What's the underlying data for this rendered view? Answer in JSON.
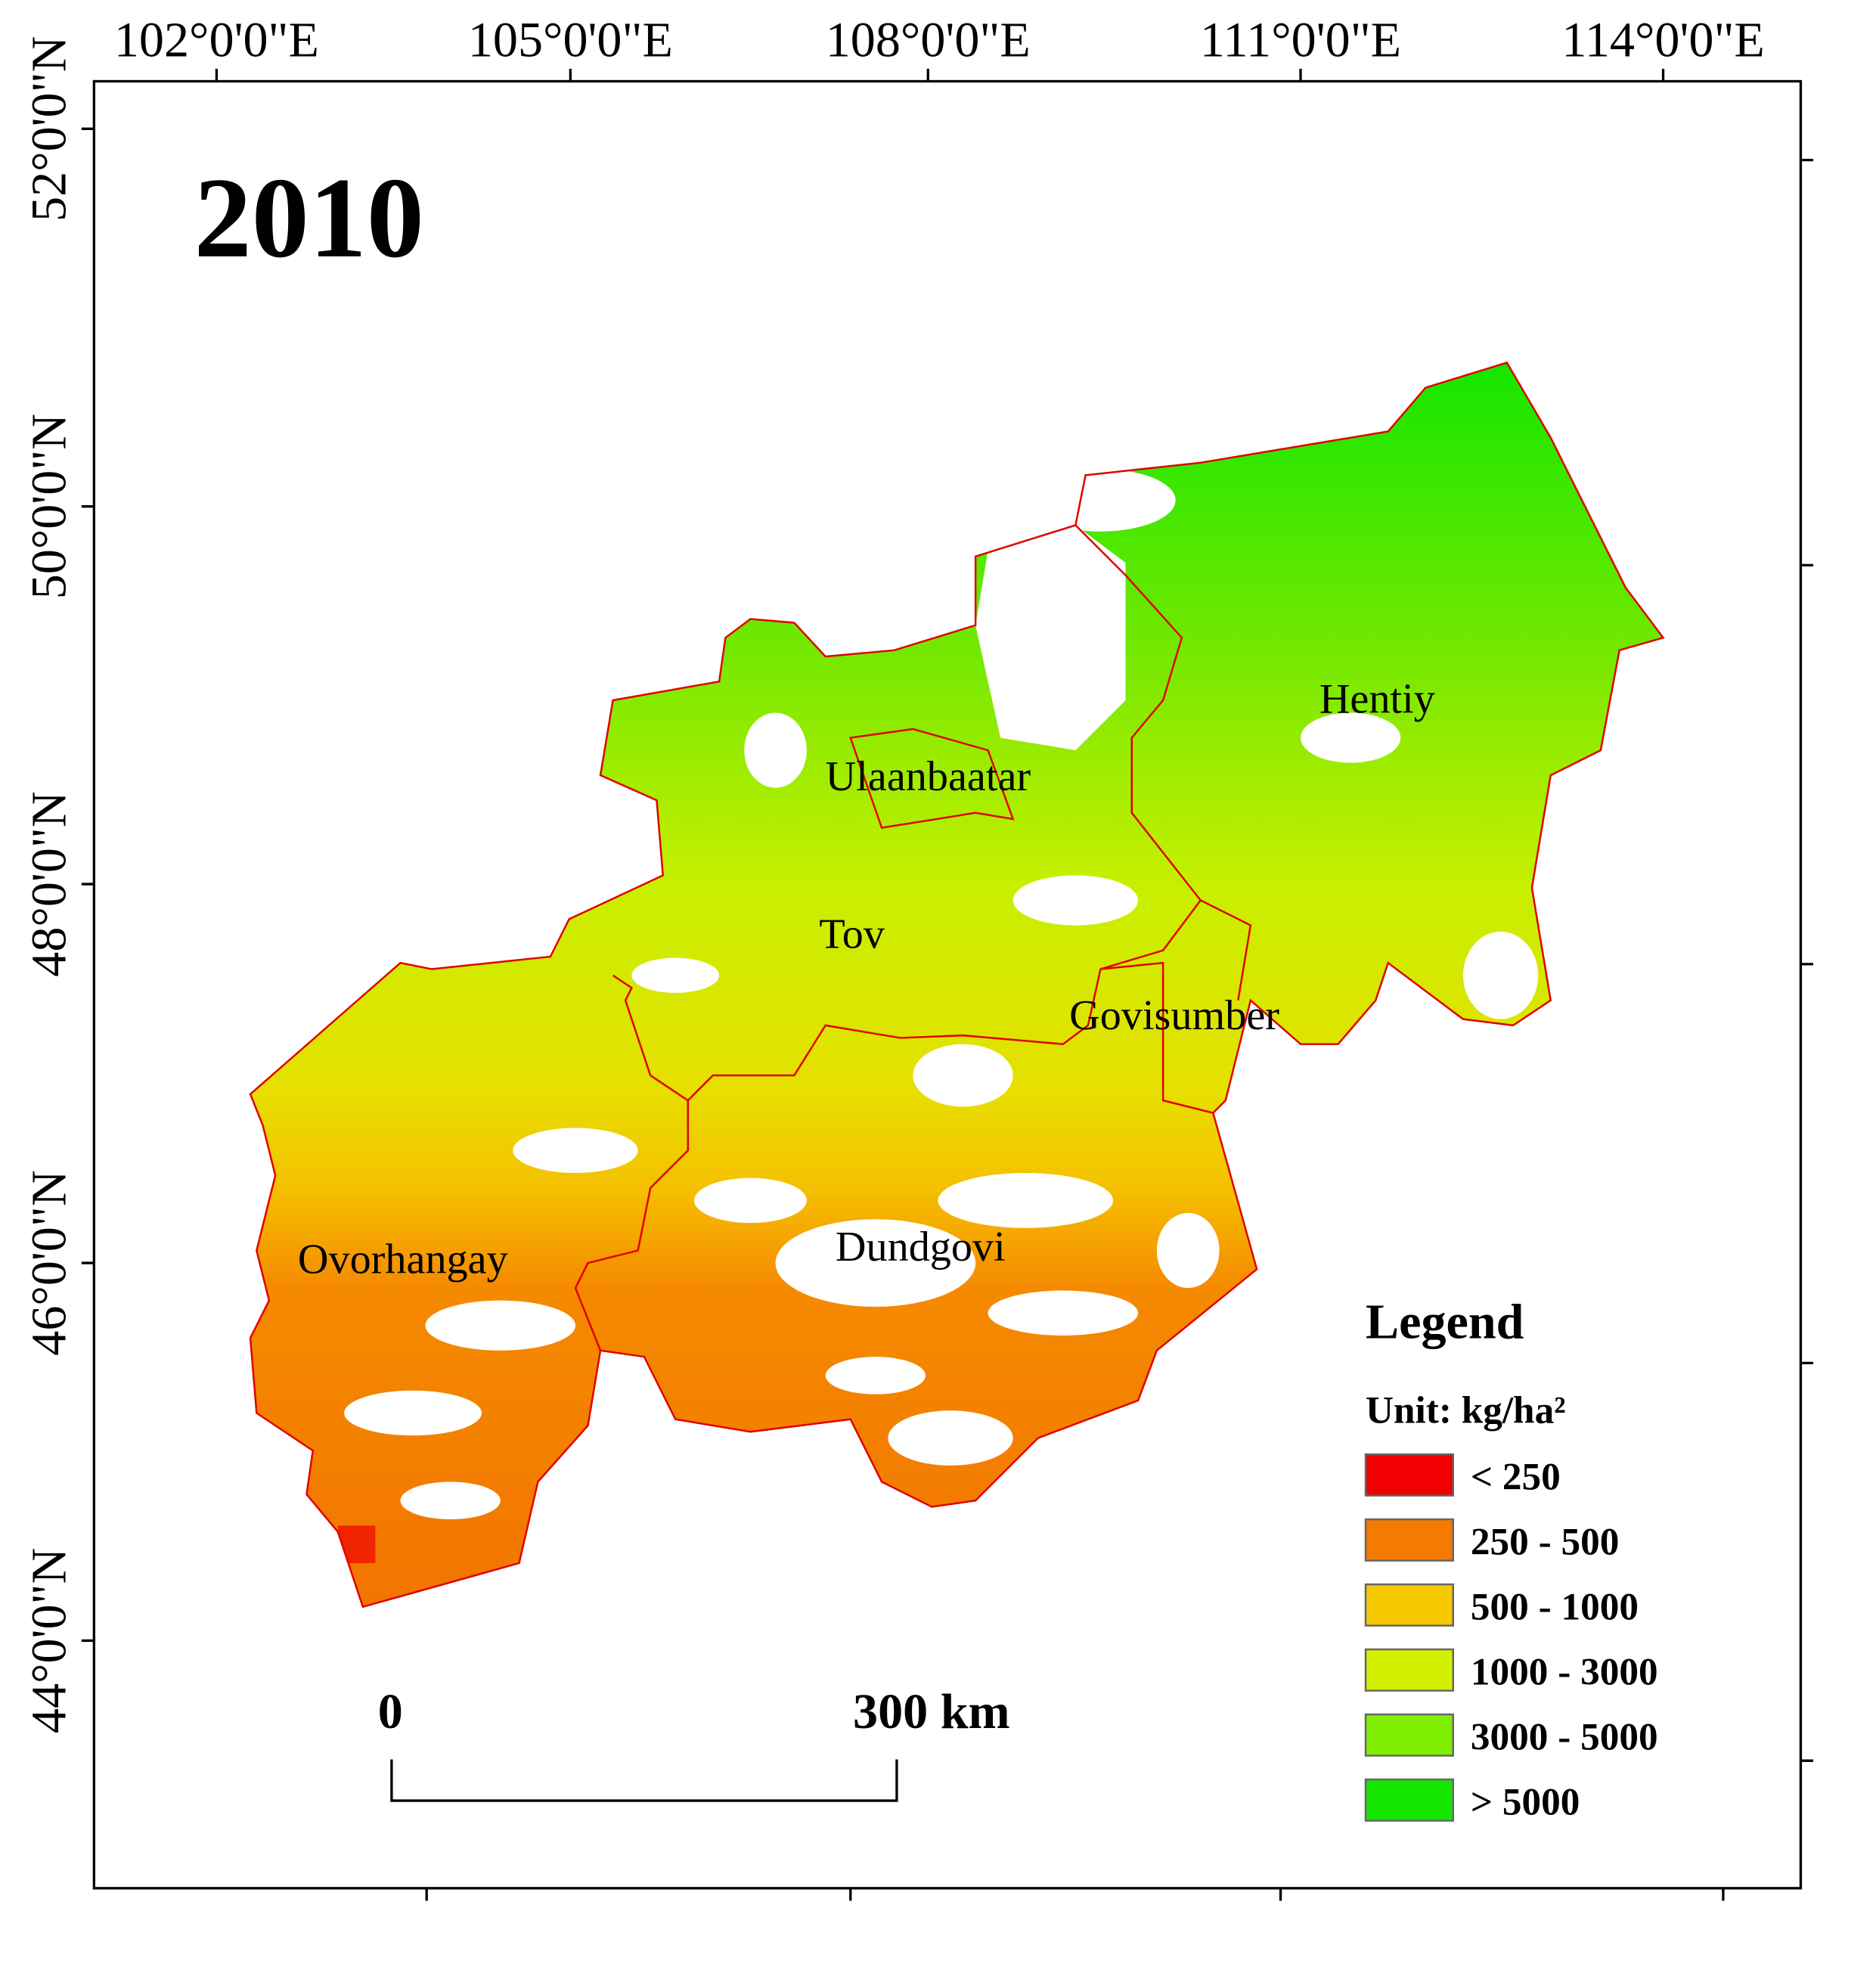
{
  "map": {
    "title": "2010",
    "longitude_labels": [
      "102°0'0\"E",
      "105°0'0\"E",
      "108°0'0\"E",
      "111°0'0\"E",
      "114°0'0\"E"
    ],
    "latitude_labels": [
      "52°0'0\"N",
      "50°0'0\"N",
      "48°0'0\"N",
      "46°0'0\"N",
      "44°0'0\"N"
    ],
    "regions": [
      "Hentiy",
      "Ulaanbaatar",
      "Tov",
      "Govisumber",
      "Ovorhangay",
      "Dundgovi"
    ]
  },
  "legend": {
    "title": "Legend",
    "unit": "Unit: kg/ha²",
    "items": [
      {
        "label": "< 250",
        "color": "#f00000"
      },
      {
        "label": "250 - 500",
        "color": "#f57a00"
      },
      {
        "label": "500 - 1000",
        "color": "#f5c800"
      },
      {
        "label": "1000 - 3000",
        "color": "#d2f000"
      },
      {
        "label": "3000 - 5000",
        "color": "#80ee00"
      },
      {
        "label": "> 5000",
        "color": "#14e600"
      }
    ]
  },
  "scale_bar": {
    "labels": [
      "0",
      "300 km"
    ]
  }
}
